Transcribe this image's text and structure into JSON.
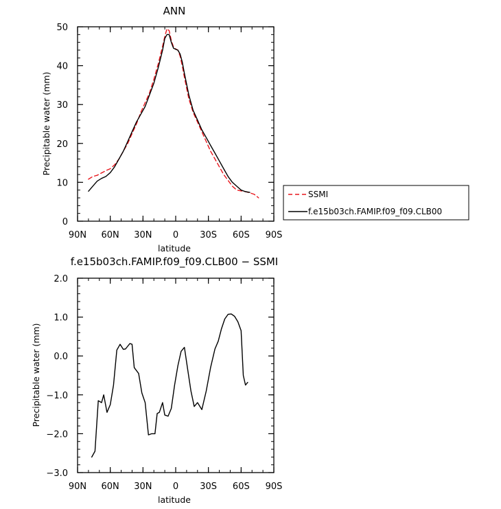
{
  "chart_data": [
    {
      "type": "line",
      "title": "ANN",
      "xlabel": "latitude",
      "ylabel": "Precipitable water (mm)",
      "x_axis": "latitude, north positive; 90N on left, 90S on right",
      "xlim": [
        90,
        -90
      ],
      "ylim": [
        0,
        50
      ],
      "x_ticks": [
        90,
        60,
        30,
        0,
        -30,
        -60,
        -90
      ],
      "x_tick_labels": [
        "90N",
        "60N",
        "30N",
        "0",
        "30S",
        "60S",
        "90S"
      ],
      "y_ticks": [
        0,
        10,
        20,
        30,
        40,
        50
      ],
      "y_tick_labels": [
        "0",
        "10",
        "20",
        "30",
        "40",
        "50"
      ],
      "grid": false,
      "legend_position": "right, outside plot",
      "series": [
        {
          "name": "SSMI",
          "color": "#e8151b",
          "dash": "dashed",
          "x": [
            80,
            76,
            72,
            68,
            64,
            60,
            56,
            52,
            48,
            44,
            40,
            36,
            32,
            28,
            24,
            20,
            16,
            12,
            10,
            8,
            6,
            4,
            2,
            0,
            -2,
            -4,
            -6,
            -8,
            -12,
            -16,
            -20,
            -24,
            -28,
            -32,
            -36,
            -40,
            -44,
            -48,
            -52,
            -56,
            -60,
            -64,
            -68,
            -72,
            -76
          ],
          "y": [
            10.8,
            11.5,
            11.8,
            12.4,
            13.0,
            13.5,
            14.5,
            16.0,
            18.0,
            20.0,
            22.5,
            25.0,
            28.0,
            30.5,
            33.0,
            36.5,
            40.5,
            45.0,
            47.5,
            49.5,
            49.0,
            46.5,
            44.8,
            44.3,
            44.0,
            42.5,
            40.0,
            37.0,
            31.5,
            28.0,
            25.5,
            23.0,
            20.5,
            18.0,
            16.0,
            14.0,
            12.0,
            10.5,
            9.0,
            8.0,
            7.8,
            7.6,
            7.3,
            6.9,
            6.0
          ]
        },
        {
          "name": "f.e15b03ch.FAMIP.f09_f09.CLB00",
          "color": "#000000",
          "dash": "solid",
          "x": [
            80,
            76,
            72,
            68,
            64,
            60,
            56,
            52,
            48,
            44,
            40,
            36,
            32,
            28,
            24,
            20,
            16,
            12,
            10,
            8,
            6,
            4,
            2,
            0,
            -2,
            -4,
            -6,
            -8,
            -12,
            -16,
            -20,
            -24,
            -28,
            -32,
            -36,
            -40,
            -44,
            -48,
            -52,
            -56,
            -60,
            -64,
            -68
          ],
          "y": [
            7.7,
            9.0,
            10.3,
            11.0,
            11.5,
            12.5,
            14.0,
            16.0,
            18.0,
            20.5,
            23.0,
            25.5,
            27.5,
            29.5,
            32.5,
            35.5,
            39.5,
            44.0,
            47.0,
            48.0,
            48.0,
            46.0,
            44.5,
            44.2,
            44.0,
            43.0,
            41.0,
            38.0,
            32.5,
            28.5,
            26.0,
            23.5,
            21.5,
            19.5,
            17.5,
            15.5,
            13.5,
            11.5,
            10.0,
            9.0,
            8.0,
            7.6,
            7.4
          ]
        }
      ]
    },
    {
      "type": "line",
      "title": "f.e15b03ch.FAMIP.f09_f09.CLB00 − SSMI",
      "xlabel": "latitude",
      "ylabel": "Precipitable water (mm)",
      "x_axis": "latitude, north positive; 90N on left, 90S on right",
      "xlim": [
        90,
        -90
      ],
      "ylim": [
        -3.0,
        2.0
      ],
      "x_ticks": [
        90,
        60,
        30,
        0,
        -30,
        -60,
        -90
      ],
      "x_tick_labels": [
        "90N",
        "60N",
        "30N",
        "0",
        "30S",
        "60S",
        "90S"
      ],
      "y_ticks": [
        -3.0,
        -2.0,
        -1.0,
        0.0,
        1.0,
        2.0
      ],
      "y_tick_labels": [
        "−3.0",
        "−2.0",
        "−1.0",
        "0.0",
        "1.0",
        "2.0"
      ],
      "grid": false,
      "series": [
        {
          "color": "#000000",
          "dash": "solid",
          "x": [
            77,
            74,
            71,
            68,
            66,
            63,
            60,
            57,
            54,
            51,
            48,
            46,
            44,
            42,
            40,
            38,
            34,
            31,
            28,
            25,
            22,
            19,
            17,
            15,
            12,
            10,
            7,
            4,
            1,
            -2,
            -5,
            -8,
            -11,
            -14,
            -17,
            -20,
            -24,
            -28,
            -32,
            -36,
            -39,
            -42,
            -45,
            -48,
            -51,
            -54,
            -57,
            -60,
            -62,
            -64,
            -66
          ],
          "y": [
            -2.6,
            -2.45,
            -1.15,
            -1.2,
            -1.0,
            -1.45,
            -1.25,
            -0.75,
            0.15,
            0.3,
            0.17,
            0.18,
            0.25,
            0.32,
            0.3,
            -0.3,
            -0.45,
            -0.95,
            -1.2,
            -2.03,
            -2.0,
            -2.0,
            -1.48,
            -1.45,
            -1.2,
            -1.52,
            -1.55,
            -1.35,
            -0.75,
            -0.25,
            0.12,
            0.22,
            -0.35,
            -0.9,
            -1.3,
            -1.2,
            -1.38,
            -0.9,
            -0.3,
            0.18,
            0.38,
            0.7,
            0.95,
            1.07,
            1.08,
            1.02,
            0.88,
            0.65,
            -0.5,
            -0.75,
            -0.68
          ]
        }
      ]
    }
  ]
}
